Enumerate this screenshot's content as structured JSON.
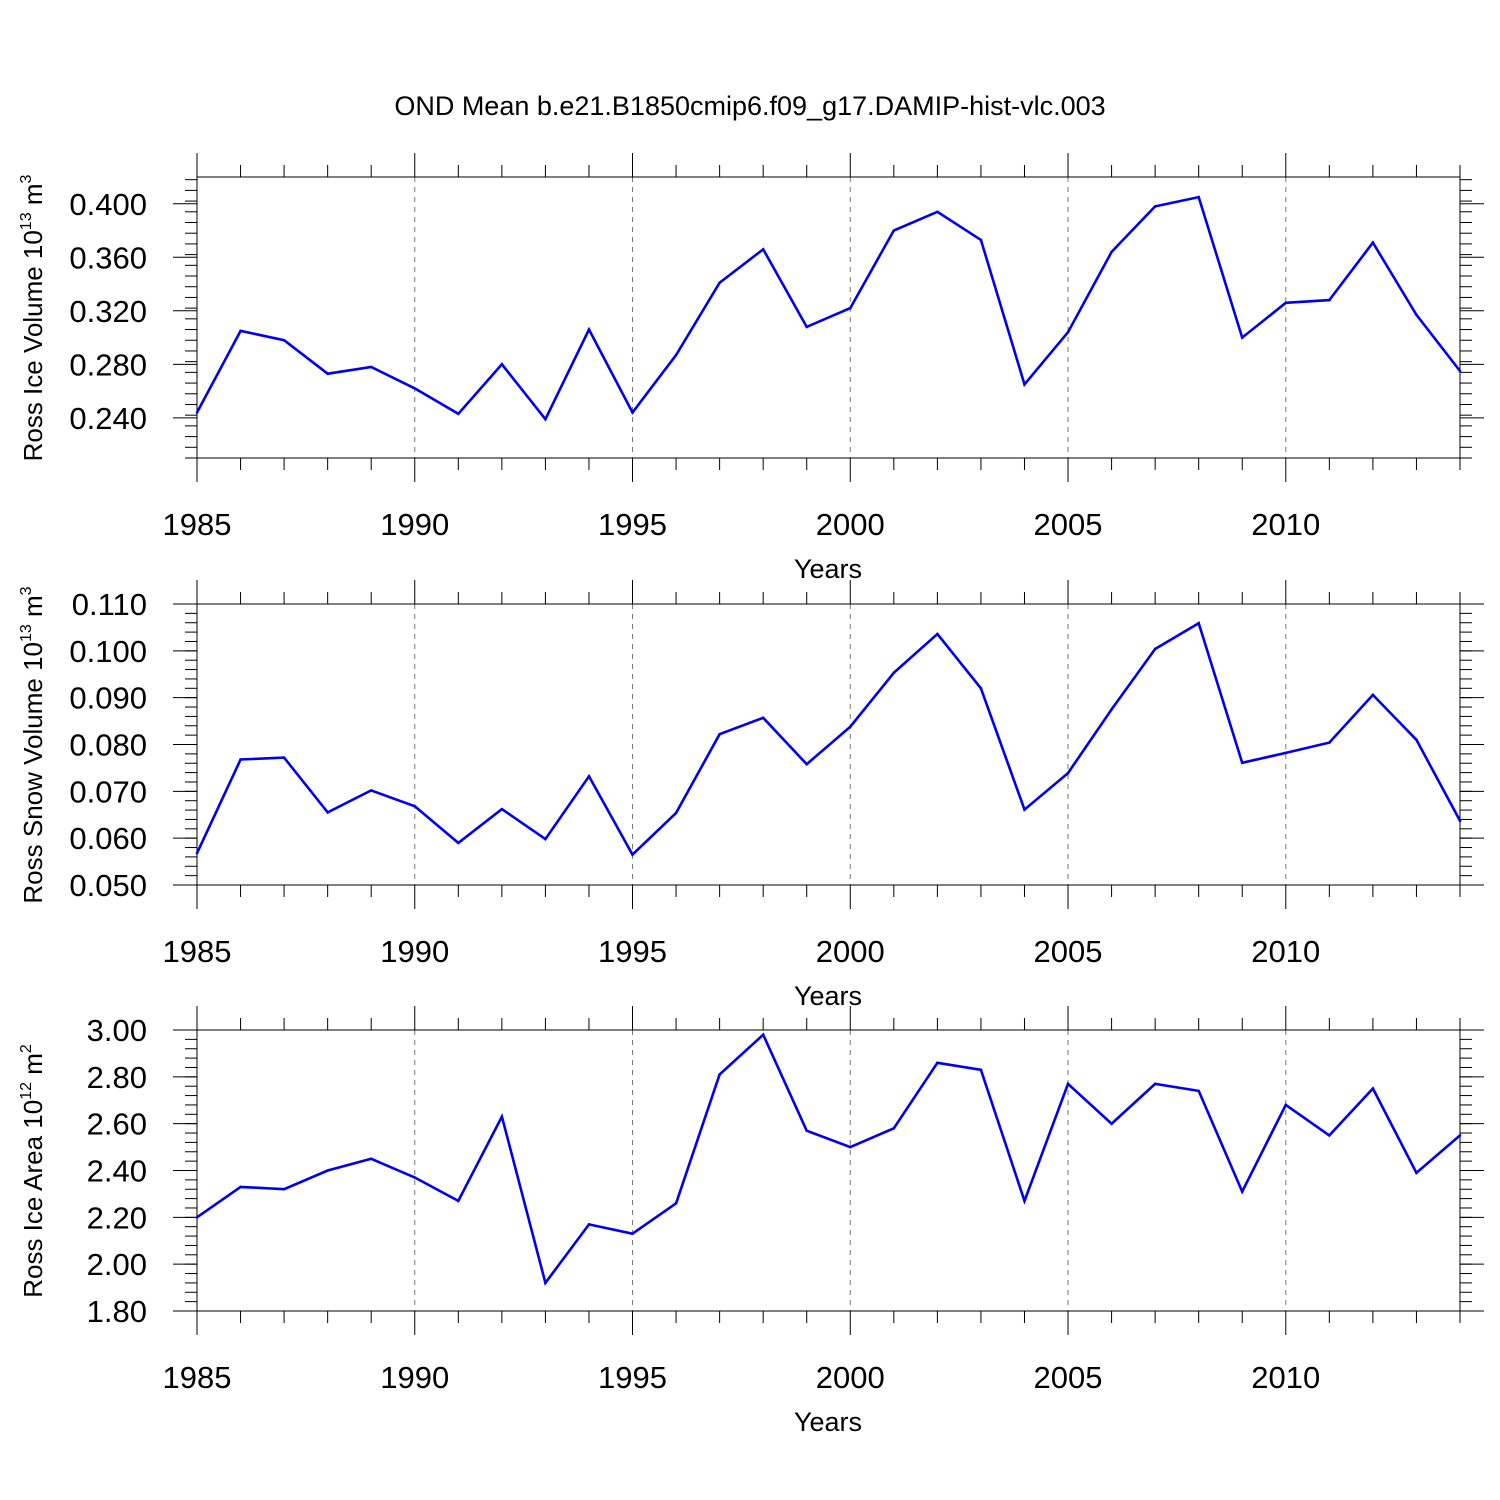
{
  "figure": {
    "title": "OND Mean b.e21.B1850cmip6.f09_g17.DAMIP-hist-vlc.003"
  },
  "chart_data": [
    {
      "type": "line",
      "title": "OND Mean b.e21.B1850cmip6.f09_g17.DAMIP-hist-vlc.003",
      "xlabel": "Years",
      "ylabel": {
        "prefix": "Ross Ice Volume 10",
        "exp": "13",
        "unit": " m",
        "unit_exp": "3"
      },
      "xlim": [
        1985,
        2014
      ],
      "ylim": [
        0.21,
        0.42
      ],
      "xticks": [
        1985,
        1990,
        1995,
        2000,
        2005,
        2010
      ],
      "xtick_labels": [
        "1985",
        "1990",
        "1995",
        "2000",
        "2005",
        "2010"
      ],
      "yticks": [
        0.24,
        0.28,
        0.32,
        0.36,
        0.4
      ],
      "ytick_labels": [
        "0.240",
        "0.280",
        "0.320",
        "0.360",
        "0.400"
      ],
      "yminor_step": 0.008,
      "grid": "vertical dashed at major x ticks",
      "line_color": "#0000ee",
      "series": [
        {
          "name": "Ross Ice Volume",
          "x": [
            1985,
            1986,
            1987,
            1988,
            1989,
            1990,
            1991,
            1992,
            1993,
            1994,
            1995,
            1996,
            1997,
            1998,
            1999,
            2000,
            2001,
            2002,
            2003,
            2004,
            2005,
            2006,
            2007,
            2008,
            2009,
            2010,
            2011,
            2012,
            2013,
            2014
          ],
          "values": [
            0.244,
            0.305,
            0.298,
            0.273,
            0.278,
            0.262,
            0.243,
            0.28,
            0.239,
            0.306,
            0.244,
            0.287,
            0.341,
            0.366,
            0.308,
            0.322,
            0.38,
            0.394,
            0.373,
            0.265,
            0.304,
            0.364,
            0.398,
            0.405,
            0.3,
            0.326,
            0.328,
            0.371,
            0.317,
            0.275
          ]
        }
      ]
    },
    {
      "type": "line",
      "title": "",
      "xlabel": "Years",
      "ylabel": {
        "prefix": "Ross Snow Volume 10",
        "exp": "13",
        "unit": " m",
        "unit_exp": "3"
      },
      "xlim": [
        1985,
        2014
      ],
      "ylim": [
        0.05,
        0.11
      ],
      "xticks": [
        1985,
        1990,
        1995,
        2000,
        2005,
        2010
      ],
      "xtick_labels": [
        "1985",
        "1990",
        "1995",
        "2000",
        "2005",
        "2010"
      ],
      "yticks": [
        0.05,
        0.06,
        0.07,
        0.08,
        0.09,
        0.1,
        0.11
      ],
      "ytick_labels": [
        "0.050",
        "0.060",
        "0.070",
        "0.080",
        "0.090",
        "0.100",
        "0.110"
      ],
      "yminor_step": 0.002,
      "grid": "vertical dashed at major x ticks",
      "line_color": "#0000ee",
      "series": [
        {
          "name": "Ross Snow Volume",
          "x": [
            1985,
            1986,
            1987,
            1988,
            1989,
            1990,
            1991,
            1992,
            1993,
            1994,
            1995,
            1996,
            1997,
            1998,
            1999,
            2000,
            2001,
            2002,
            2003,
            2004,
            2005,
            2006,
            2007,
            2008,
            2009,
            2010,
            2011,
            2012,
            2013,
            2014
          ],
          "values": [
            0.0568,
            0.0768,
            0.0772,
            0.0655,
            0.0702,
            0.0668,
            0.059,
            0.0662,
            0.0598,
            0.0732,
            0.0565,
            0.0654,
            0.0822,
            0.0857,
            0.0758,
            0.0838,
            0.0953,
            0.1036,
            0.092,
            0.0661,
            0.0739,
            0.0875,
            0.1004,
            0.1059,
            0.0761,
            0.0782,
            0.0804,
            0.0906,
            0.081,
            0.0637
          ]
        }
      ]
    },
    {
      "type": "line",
      "title": "",
      "xlabel": "Years",
      "ylabel": {
        "prefix": "Ross Ice Area 10",
        "exp": "12",
        "unit": " m",
        "unit_exp": "2"
      },
      "xlim": [
        1985,
        2014
      ],
      "ylim": [
        1.8,
        3.0
      ],
      "xticks": [
        1985,
        1990,
        1995,
        2000,
        2005,
        2010
      ],
      "xtick_labels": [
        "1985",
        "1990",
        "1995",
        "2000",
        "2005",
        "2010"
      ],
      "yticks": [
        1.8,
        2.0,
        2.2,
        2.4,
        2.6,
        2.8,
        3.0
      ],
      "ytick_labels": [
        "1.80",
        "2.00",
        "2.20",
        "2.40",
        "2.60",
        "2.80",
        "3.00"
      ],
      "yminor_step": 0.04,
      "grid": "vertical dashed at major x ticks",
      "line_color": "#0000ee",
      "series": [
        {
          "name": "Ross Ice Area",
          "x": [
            1985,
            1986,
            1987,
            1988,
            1989,
            1990,
            1991,
            1992,
            1993,
            1994,
            1995,
            1996,
            1997,
            1998,
            1999,
            2000,
            2001,
            2002,
            2003,
            2004,
            2005,
            2006,
            2007,
            2008,
            2009,
            2010,
            2011,
            2012,
            2013,
            2014
          ],
          "values": [
            2.2,
            2.33,
            2.32,
            2.4,
            2.45,
            2.37,
            2.27,
            2.63,
            1.92,
            2.17,
            2.13,
            2.26,
            2.81,
            2.98,
            2.57,
            2.5,
            2.58,
            2.86,
            2.83,
            2.27,
            2.77,
            2.6,
            2.77,
            2.74,
            2.31,
            2.68,
            2.55,
            2.75,
            2.39,
            2.55
          ]
        }
      ]
    }
  ]
}
